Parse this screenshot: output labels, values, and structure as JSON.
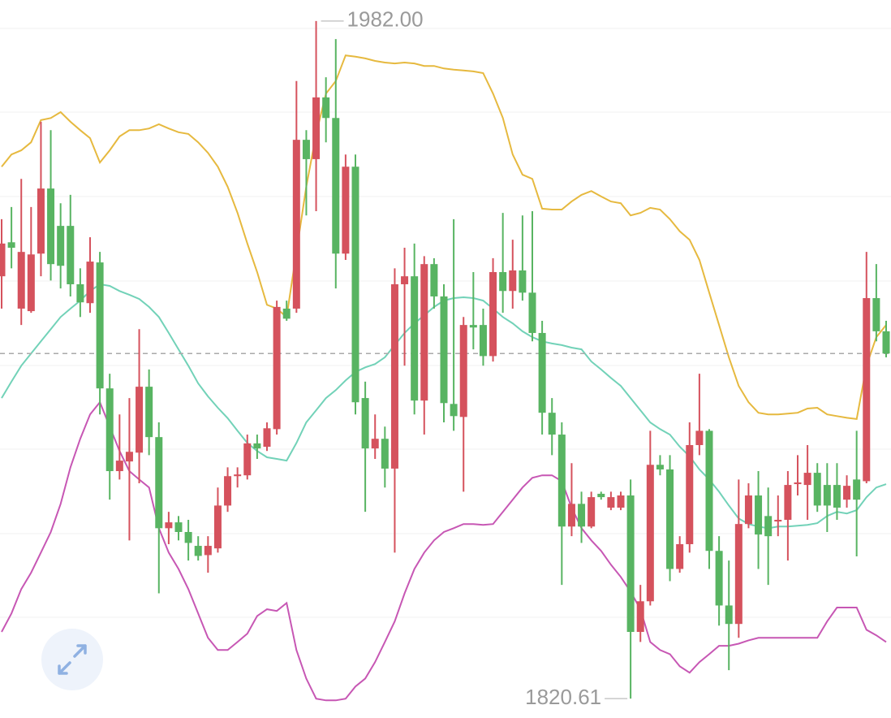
{
  "chart_data": {
    "type": "candlestick",
    "ylim": [
      1816,
      1987
    ],
    "up_color": "#d5525d",
    "down_color": "#58b462",
    "last_price": 1902.8,
    "last_price_color": "#aaaaaa",
    "high_label": "1982.00",
    "low_label": "1820.61",
    "candles": [
      [
        1921.2,
        1934.8,
        1913.5,
        1929.0
      ],
      [
        1929.3,
        1937.7,
        1923.1,
        1928.0
      ],
      [
        1913.5,
        1944.4,
        1909.6,
        1927.0
      ],
      [
        1912.9,
        1937.7,
        1912.5,
        1926.4
      ],
      [
        1926.6,
        1958.0,
        1921.2,
        1942.1
      ],
      [
        1942.1,
        1956.0,
        1920.2,
        1924.1
      ],
      [
        1933.2,
        1938.6,
        1918.3,
        1923.7
      ],
      [
        1933.2,
        1940.6,
        1916.4,
        1919.3
      ],
      [
        1919.3,
        1923.1,
        1911.5,
        1915.0
      ],
      [
        1914.8,
        1930.5,
        1912.5,
        1924.7
      ],
      [
        1924.5,
        1927.0,
        1888.3,
        1894.5
      ],
      [
        1894.5,
        1898.0,
        1868.0,
        1874.8
      ],
      [
        1874.8,
        1888.3,
        1872.8,
        1877.3
      ],
      [
        1877.1,
        1892.2,
        1858.3,
        1879.4
      ],
      [
        1879.2,
        1908.6,
        1871.9,
        1894.9
      ],
      [
        1894.9,
        1899.0,
        1878.6,
        1882.9
      ],
      [
        1882.9,
        1886.4,
        1845.7,
        1861.2
      ],
      [
        1861.2,
        1865.1,
        1857.4,
        1862.6
      ],
      [
        1862.6,
        1864.1,
        1858.3,
        1860.3
      ],
      [
        1860.3,
        1863.2,
        1853.5,
        1857.7
      ],
      [
        1857.0,
        1859.3,
        1853.5,
        1854.6
      ],
      [
        1854.8,
        1859.3,
        1850.6,
        1857.0
      ],
      [
        1856.4,
        1870.9,
        1855.4,
        1866.6
      ],
      [
        1866.6,
        1875.7,
        1865.1,
        1873.6
      ],
      [
        1873.6,
        1875.7,
        1870.9,
        1874.0
      ],
      [
        1873.8,
        1883.5,
        1872.8,
        1881.4
      ],
      [
        1881.4,
        1883.5,
        1877.7,
        1880.2
      ],
      [
        1880.6,
        1886.4,
        1879.6,
        1885.0
      ],
      [
        1884.8,
        1915.4,
        1883.5,
        1913.9
      ],
      [
        1913.5,
        1915.4,
        1910.6,
        1911.1
      ],
      [
        1913.5,
        1967.7,
        1912.5,
        1953.7
      ],
      [
        1953.7,
        1956.0,
        1935.7,
        1949.1
      ],
      [
        1949.1,
        1982.0,
        1936.7,
        1963.8
      ],
      [
        1963.8,
        1968.6,
        1953.1,
        1958.9
      ],
      [
        1958.9,
        1977.7,
        1918.3,
        1926.6
      ],
      [
        1926.6,
        1950.2,
        1925.1,
        1947.3
      ],
      [
        1947.3,
        1950.2,
        1888.3,
        1891.2
      ],
      [
        1892.2,
        1896.1,
        1865.1,
        1880.2
      ],
      [
        1880.2,
        1888.3,
        1877.7,
        1882.5
      ],
      [
        1882.5,
        1885.4,
        1870.9,
        1875.4
      ],
      [
        1875.4,
        1923.1,
        1855.4,
        1919.3
      ],
      [
        1919.3,
        1928.0,
        1899.9,
        1921.2
      ],
      [
        1921.2,
        1929.0,
        1888.3,
        1891.6
      ],
      [
        1891.6,
        1926.0,
        1883.5,
        1924.1
      ],
      [
        1924.1,
        1925.5,
        1913.5,
        1916.4
      ],
      [
        1916.4,
        1919.3,
        1886.4,
        1891.0
      ],
      [
        1890.8,
        1934.8,
        1884.4,
        1887.9
      ],
      [
        1887.7,
        1911.5,
        1869.9,
        1909.6
      ],
      [
        1909.6,
        1922.2,
        1903.8,
        1909.0
      ],
      [
        1909.6,
        1913.5,
        1899.9,
        1902.2
      ],
      [
        1902.2,
        1925.5,
        1900.9,
        1922.2
      ],
      [
        1922.2,
        1936.3,
        1912.5,
        1917.7
      ],
      [
        1917.7,
        1929.9,
        1913.5,
        1922.6
      ],
      [
        1922.6,
        1935.7,
        1915.4,
        1917.3
      ],
      [
        1917.3,
        1936.7,
        1905.7,
        1907.7
      ],
      [
        1907.7,
        1910.6,
        1883.5,
        1888.7
      ],
      [
        1888.7,
        1892.2,
        1878.6,
        1883.5
      ],
      [
        1883.5,
        1886.4,
        1847.7,
        1861.6
      ],
      [
        1861.6,
        1876.7,
        1859.3,
        1867.0
      ],
      [
        1867.0,
        1869.9,
        1857.7,
        1861.6
      ],
      [
        1861.6,
        1869.9,
        1861.2,
        1868.6
      ],
      [
        1869.4,
        1869.9,
        1868.0,
        1868.6
      ],
      [
        1866.1,
        1869.9,
        1865.5,
        1868.6
      ],
      [
        1866.1,
        1869.9,
        1865.5,
        1869.0
      ],
      [
        1869.0,
        1872.8,
        1820.61,
        1836.5
      ],
      [
        1836.5,
        1847.7,
        1834.1,
        1843.8
      ],
      [
        1843.8,
        1884.4,
        1842.8,
        1876.3
      ],
      [
        1876.3,
        1878.6,
        1873.8,
        1875.2
      ],
      [
        1875.2,
        1878.6,
        1848.6,
        1851.5
      ],
      [
        1851.5,
        1859.3,
        1850.6,
        1857.4
      ],
      [
        1857.4,
        1886.4,
        1855.4,
        1881.0
      ],
      [
        1881.0,
        1898.0,
        1878.6,
        1884.4
      ],
      [
        1884.4,
        1884.8,
        1851.5,
        1855.8
      ],
      [
        1855.8,
        1859.3,
        1838.0,
        1842.8
      ],
      [
        1842.8,
        1853.5,
        1827.4,
        1838.4
      ],
      [
        1838.4,
        1872.8,
        1835.1,
        1862.2
      ],
      [
        1862.2,
        1871.9,
        1861.2,
        1869.0
      ],
      [
        1869.0,
        1874.8,
        1851.5,
        1859.7
      ],
      [
        1864.1,
        1870.9,
        1847.7,
        1859.3
      ],
      [
        1862.8,
        1869.0,
        1859.3,
        1863.2
      ],
      [
        1863.2,
        1874.8,
        1853.5,
        1871.5
      ],
      [
        1871.7,
        1878.6,
        1869.0,
        1872.1
      ],
      [
        1871.5,
        1881.0,
        1863.2,
        1874.4
      ],
      [
        1874.4,
        1876.7,
        1865.1,
        1866.6
      ],
      [
        1871.5,
        1876.7,
        1860.3,
        1866.6
      ],
      [
        1871.5,
        1876.7,
        1863.2,
        1866.1
      ],
      [
        1868.0,
        1873.8,
        1866.1,
        1871.3
      ],
      [
        1872.8,
        1884.4,
        1854.5,
        1868.0
      ],
      [
        1872.4,
        1927.0,
        1871.9,
        1916.0
      ],
      [
        1916.0,
        1924.1,
        1905.7,
        1908.1
      ],
      [
        1908.1,
        1910.6,
        1901.9,
        1902.8
      ]
    ],
    "bands": [
      {
        "color": "#e6b93f",
        "values": [
          1947.3,
          1950.2,
          1951.2,
          1953.1,
          1958.4,
          1958.9,
          1960.3,
          1958.0,
          1956.0,
          1954.1,
          1948.3,
          1951.2,
          1954.5,
          1956.0,
          1956.0,
          1956.4,
          1957.4,
          1956.4,
          1955.5,
          1955.1,
          1953.1,
          1950.6,
          1947.3,
          1942.5,
          1936.3,
          1929.0,
          1922.2,
          1914.4,
          1913.5,
          1911.5,
          1927.0,
          1942.5,
          1955.1,
          1964.7,
          1967.7,
          1973.8,
          1973.5,
          1973.1,
          1972.5,
          1972.1,
          1971.9,
          1972.1,
          1971.9,
          1971.3,
          1971.3,
          1970.7,
          1970.4,
          1970.2,
          1970.0,
          1969.6,
          1964.7,
          1958.9,
          1950.2,
          1945.4,
          1944.4,
          1937.3,
          1937.1,
          1937.1,
          1939.0,
          1940.6,
          1941.5,
          1940.2,
          1939.0,
          1938.6,
          1935.7,
          1936.3,
          1937.5,
          1937.1,
          1934.8,
          1931.9,
          1929.9,
          1925.1,
          1917.3,
          1909.6,
          1901.9,
          1895.1,
          1891.2,
          1888.7,
          1888.3,
          1888.3,
          1888.5,
          1888.7,
          1889.7,
          1889.9,
          1888.3,
          1887.9,
          1887.5,
          1887.2,
          1899.9,
          1906.7,
          1909.6
        ]
      },
      {
        "color": "#72d2b8",
        "values": [
          1892.2,
          1896.1,
          1899.9,
          1902.8,
          1905.7,
          1908.6,
          1911.5,
          1913.5,
          1915.4,
          1917.7,
          1919.3,
          1918.9,
          1917.7,
          1916.8,
          1915.8,
          1913.9,
          1911.5,
          1907.7,
          1903.8,
          1899.9,
          1895.7,
          1892.6,
          1889.9,
          1887.4,
          1884.4,
          1881.5,
          1879.6,
          1878.1,
          1877.7,
          1877.3,
          1881.5,
          1886.4,
          1889.3,
          1892.2,
          1894.1,
          1896.4,
          1898.4,
          1899.5,
          1900.3,
          1901.9,
          1904.8,
          1907.7,
          1910.0,
          1911.9,
          1913.9,
          1915.4,
          1916.0,
          1916.2,
          1916.0,
          1915.4,
          1913.5,
          1911.5,
          1910.0,
          1908.1,
          1906.7,
          1905.7,
          1905.2,
          1904.8,
          1904.2,
          1903.8,
          1900.9,
          1899.0,
          1897.0,
          1895.1,
          1892.2,
          1889.3,
          1886.4,
          1884.8,
          1883.5,
          1880.6,
          1878.3,
          1875.2,
          1872.8,
          1869.9,
          1866.6,
          1863.5,
          1862.2,
          1861.6,
          1861.2,
          1861.6,
          1861.6,
          1861.8,
          1862.0,
          1862.4,
          1864.1,
          1865.1,
          1864.7,
          1865.5,
          1868.6,
          1870.9,
          1871.7
        ]
      },
      {
        "color": "#c757b4",
        "values": [
          1836.5,
          1840.9,
          1846.7,
          1850.6,
          1855.4,
          1860.3,
          1867.0,
          1875.7,
          1882.5,
          1888.3,
          1891.2,
          1885.4,
          1879.6,
          1874.8,
          1872.8,
          1870.9,
          1861.2,
          1855.4,
          1851.5,
          1846.7,
          1840.9,
          1835.1,
          1832.2,
          1832.2,
          1834.1,
          1836.1,
          1840.3,
          1841.9,
          1841.5,
          1843.4,
          1832.2,
          1825.4,
          1820.6,
          1820.2,
          1820.2,
          1820.6,
          1823.5,
          1825.4,
          1829.3,
          1834.1,
          1839.0,
          1845.7,
          1851.5,
          1855.4,
          1858.3,
          1860.3,
          1861.2,
          1862.2,
          1862.2,
          1862.0,
          1862.2,
          1865.1,
          1868.0,
          1870.9,
          1873.2,
          1873.8,
          1873.8,
          1872.4,
          1866.1,
          1861.2,
          1858.3,
          1855.8,
          1852.5,
          1849.6,
          1846.1,
          1841.9,
          1834.1,
          1832.2,
          1831.2,
          1828.3,
          1826.8,
          1829.3,
          1831.2,
          1833.2,
          1833.2,
          1833.7,
          1834.5,
          1835.1,
          1835.1,
          1835.1,
          1835.1,
          1835.1,
          1835.1,
          1835.1,
          1839.0,
          1842.3,
          1842.3,
          1842.3,
          1837.0,
          1835.7,
          1834.1
        ]
      }
    ]
  }
}
